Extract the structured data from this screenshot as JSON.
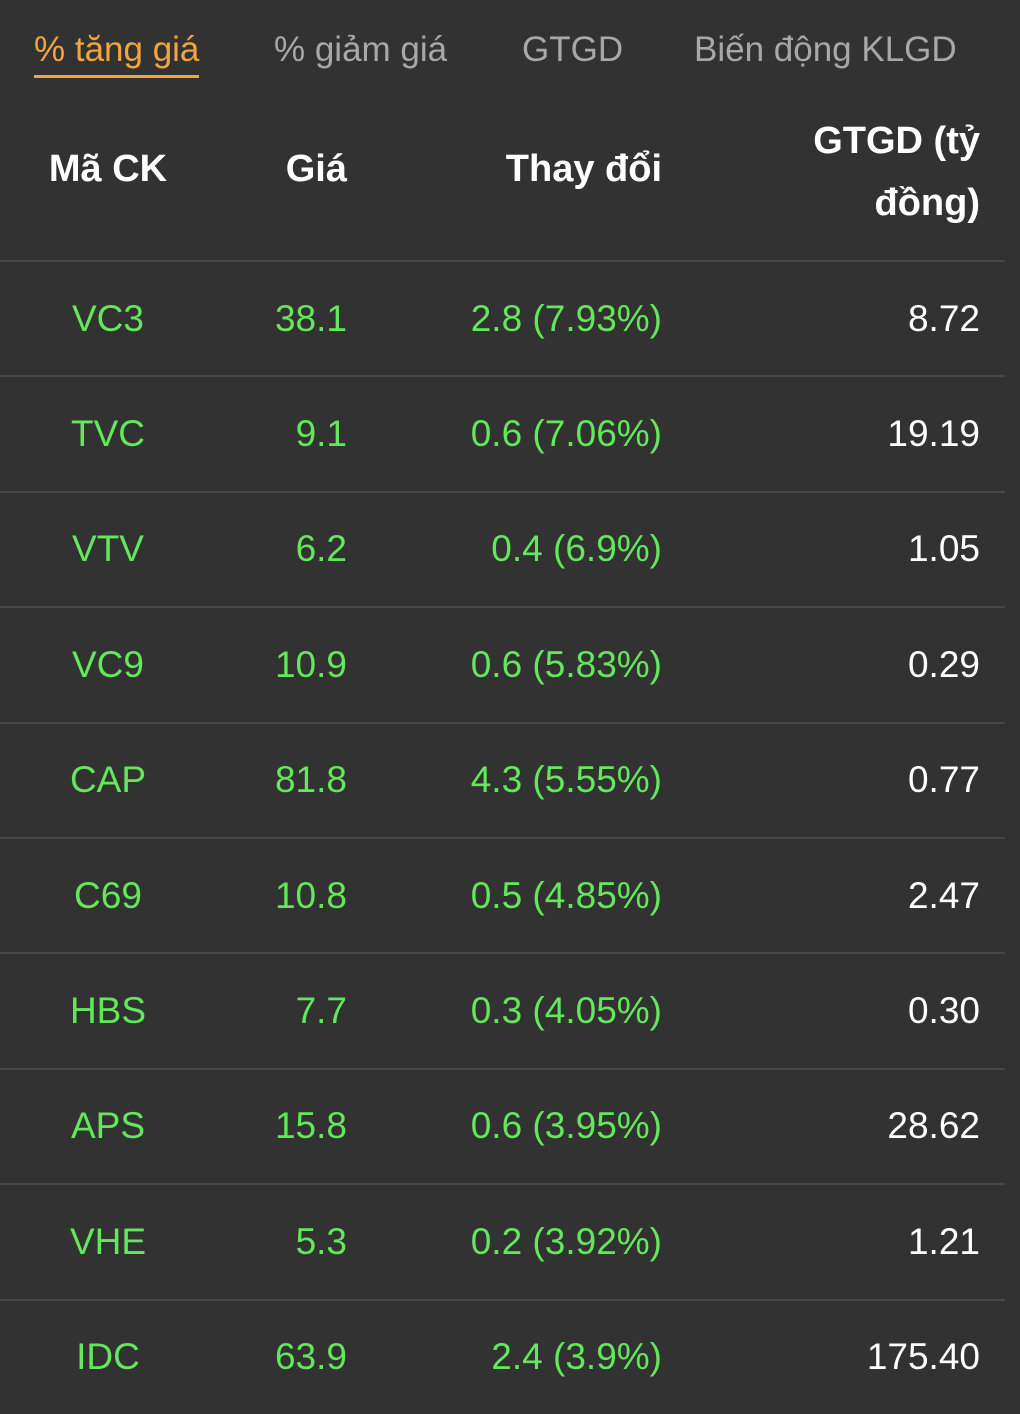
{
  "tabs": [
    "% tăng giá",
    "% giảm giá",
    "GTGD",
    "Biến động KLGD"
  ],
  "active_tab": 0,
  "table": {
    "headers": [
      "Mã CK",
      "Giá",
      "Thay đổi",
      "GTGD (tỷ đồng)"
    ],
    "rows": [
      [
        "VC3",
        "38.1",
        "2.8 (7.93%)",
        "8.72"
      ],
      [
        "TVC",
        "9.1",
        "0.6 (7.06%)",
        "19.19"
      ],
      [
        "VTV",
        "6.2",
        "0.4 (6.9%)",
        "1.05"
      ],
      [
        "VC9",
        "10.9",
        "0.6 (5.83%)",
        "0.29"
      ],
      [
        "CAP",
        "81.8",
        "4.3 (5.55%)",
        "0.77"
      ],
      [
        "C69",
        "10.8",
        "0.5 (4.85%)",
        "2.47"
      ],
      [
        "HBS",
        "7.7",
        "0.3 (4.05%)",
        "0.30"
      ],
      [
        "APS",
        "15.8",
        "0.6 (3.95%)",
        "28.62"
      ],
      [
        "VHE",
        "5.3",
        "0.2 (3.92%)",
        "1.21"
      ],
      [
        "IDC",
        "63.9",
        "2.4 (3.9%)",
        "175.40"
      ]
    ]
  }
}
